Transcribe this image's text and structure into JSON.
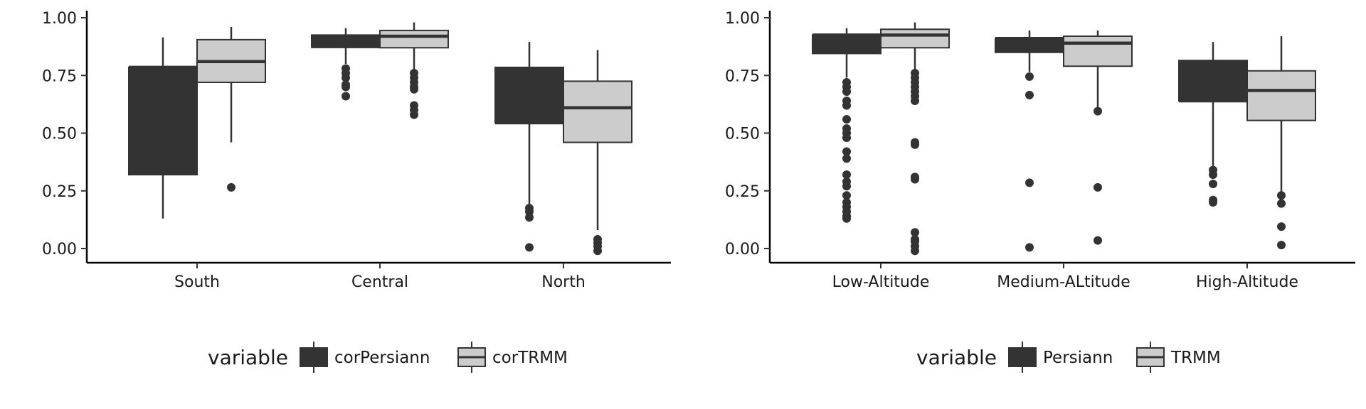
{
  "chart_data": [
    {
      "type": "box",
      "title": "",
      "xlabel": "",
      "ylabel": "",
      "ylim": [
        0,
        1
      ],
      "yticks": [
        "0.00",
        "0.25",
        "0.50",
        "0.75",
        "1.00"
      ],
      "categories": [
        "South",
        "Central",
        "North"
      ],
      "legend": {
        "title": "variable",
        "position": "bottom"
      },
      "series": [
        {
          "name": "corPersiann",
          "color": "#333333",
          "boxes": [
            {
              "category": "South",
              "whisker_low": 0.13,
              "q1": 0.32,
              "median": 0.785,
              "q3": 0.785,
              "whisker_high": 0.915,
              "outliers": []
            },
            {
              "category": "Central",
              "whisker_low": 0.8,
              "q1": 0.872,
              "median": 0.875,
              "q3": 0.925,
              "whisker_high": 0.955,
              "outliers": [
                0.78,
                0.76,
                0.74,
                0.71,
                0.7,
                0.66
              ]
            },
            {
              "category": "North",
              "whisker_low": 0.18,
              "q1": 0.545,
              "median": 0.545,
              "q3": 0.785,
              "whisker_high": 0.895,
              "outliers": [
                0.175,
                0.16,
                0.135,
                0.005
              ]
            }
          ]
        },
        {
          "name": "corTRMM",
          "color": "#cccccc",
          "boxes": [
            {
              "category": "South",
              "whisker_low": 0.46,
              "q1": 0.72,
              "median": 0.81,
              "q3": 0.905,
              "whisker_high": 0.96,
              "outliers": [
                0.265
              ]
            },
            {
              "category": "Central",
              "whisker_low": 0.77,
              "q1": 0.87,
              "median": 0.92,
              "q3": 0.945,
              "whisker_high": 0.98,
              "outliers": [
                0.76,
                0.74,
                0.72,
                0.7,
                0.69,
                0.62,
                0.6,
                0.58
              ]
            },
            {
              "category": "North",
              "whisker_low": 0.08,
              "q1": 0.46,
              "median": 0.61,
              "q3": 0.725,
              "whisker_high": 0.86,
              "outliers": [
                0.04,
                0.025,
                0.01,
                -0.01
              ]
            }
          ]
        }
      ]
    },
    {
      "type": "box",
      "title": "",
      "xlabel": "",
      "ylabel": "",
      "ylim": [
        0,
        1
      ],
      "yticks": [
        "0.00",
        "0.25",
        "0.50",
        "0.75",
        "1.00"
      ],
      "categories": [
        "Low-Altitude",
        "Medium-ALtitude",
        "High-Altitude"
      ],
      "legend": {
        "title": "variable",
        "position": "bottom"
      },
      "series": [
        {
          "name": "Persiann",
          "color": "#333333",
          "boxes": [
            {
              "category": "Low-Altitude",
              "whisker_low": 0.74,
              "q1": 0.845,
              "median": 0.925,
              "q3": 0.925,
              "whisker_high": 0.955,
              "outliers": [
                0.72,
                0.7,
                0.68,
                0.64,
                0.62,
                0.56,
                0.52,
                0.5,
                0.48,
                0.42,
                0.39,
                0.32,
                0.29,
                0.27,
                0.23,
                0.2,
                0.18,
                0.16,
                0.14,
                0.13
              ]
            },
            {
              "category": "Medium-ALtitude",
              "whisker_low": 0.765,
              "q1": 0.85,
              "median": 0.91,
              "q3": 0.91,
              "whisker_high": 0.945,
              "outliers": [
                0.745,
                0.665,
                0.285,
                0.005
              ]
            },
            {
              "category": "High-Altitude",
              "whisker_low": 0.35,
              "q1": 0.64,
              "median": 0.64,
              "q3": 0.815,
              "whisker_high": 0.895,
              "outliers": [
                0.34,
                0.32,
                0.28,
                0.21,
                0.2
              ]
            }
          ]
        },
        {
          "name": "TRMM",
          "color": "#cccccc",
          "boxes": [
            {
              "category": "Low-Altitude",
              "whisker_low": 0.77,
              "q1": 0.87,
              "median": 0.925,
              "q3": 0.95,
              "whisker_high": 0.98,
              "outliers": [
                0.76,
                0.74,
                0.72,
                0.7,
                0.68,
                0.66,
                0.64,
                0.46,
                0.45,
                0.31,
                0.3,
                0.07,
                0.04,
                0.03,
                0.01,
                -0.01
              ]
            },
            {
              "category": "Medium-ALtitude",
              "whisker_low": 0.61,
              "q1": 0.79,
              "median": 0.89,
              "q3": 0.92,
              "whisker_high": 0.945,
              "outliers": [
                0.595,
                0.265,
                0.035
              ]
            },
            {
              "category": "High-Altitude",
              "whisker_low": 0.24,
              "q1": 0.555,
              "median": 0.685,
              "q3": 0.77,
              "whisker_high": 0.92,
              "outliers": [
                0.23,
                0.195,
                0.095,
                0.015
              ]
            }
          ]
        }
      ]
    }
  ]
}
